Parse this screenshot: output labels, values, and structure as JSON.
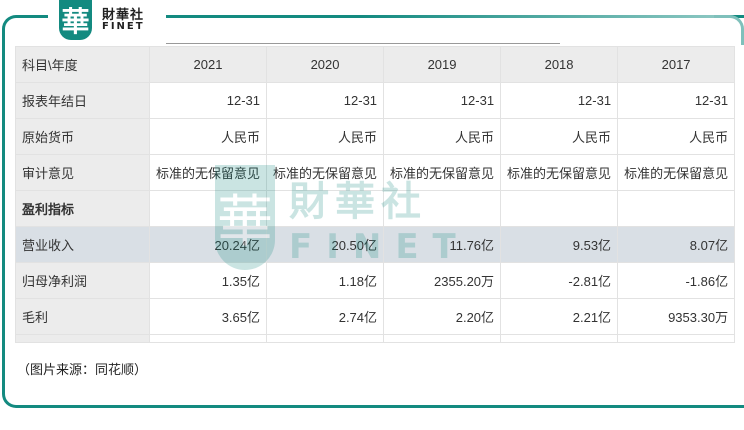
{
  "logo": {
    "mark": "華",
    "cn": "財華社",
    "en": "FINET"
  },
  "table": {
    "header": [
      "科目\\年度",
      "2021",
      "2020",
      "2019",
      "2018",
      "2017"
    ],
    "rows": [
      {
        "label": "报表年结日",
        "values": [
          "12-31",
          "12-31",
          "12-31",
          "12-31",
          "12-31"
        ]
      },
      {
        "label": "原始货币",
        "values": [
          "人民币",
          "人民币",
          "人民币",
          "人民币",
          "人民币"
        ]
      },
      {
        "label": "审计意见",
        "values": [
          "标准的无保留意见",
          "标准的无保留意见",
          "标准的无保留意见",
          "标准的无保留意见",
          "标准的无保留意见"
        ]
      },
      {
        "label": "盈利指标",
        "values": [
          "",
          "",
          "",
          "",
          ""
        ]
      },
      {
        "label": "营业收入",
        "values": [
          "20.24亿",
          "20.50亿",
          "11.76亿",
          "9.53亿",
          "8.07亿"
        ]
      },
      {
        "label": "归母净利润",
        "values": [
          "1.35亿",
          "1.18亿",
          "2355.20万",
          "-2.81亿",
          "-1.86亿"
        ]
      },
      {
        "label": "毛利",
        "values": [
          "3.65亿",
          "2.74亿",
          "2.20亿",
          "2.21亿",
          "9353.30万"
        ]
      }
    ]
  },
  "caption": "（图片来源：同花顺）",
  "colors": {
    "brand": "#138a80",
    "highlight_row": "#d9dfe5",
    "header_bg": "#ececec"
  }
}
